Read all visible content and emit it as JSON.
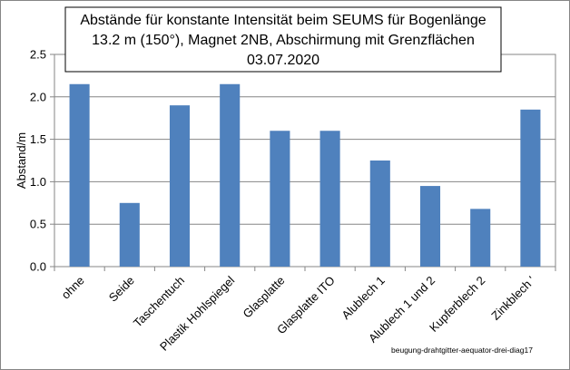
{
  "chart_data": {
    "type": "bar",
    "title_lines": [
      "Abstände für konstante Intensität beim SEUMS für Bogenlänge",
      "13.2 m (150°), Magnet 2NB, Abschirmung mit Grenzflächen",
      "03.07.2020"
    ],
    "xlabel": "",
    "ylabel": "Abstand/m",
    "ylim": [
      0,
      2.5
    ],
    "yticks": [
      "0.0",
      "0.5",
      "1.0",
      "1.5",
      "2.0",
      "2.5"
    ],
    "categories": [
      "ohne",
      "Seide",
      "Taschentuch",
      "Plastik Hohlspiegel",
      "Glasplatte",
      "Glasplatte ITO",
      "Alublech 1",
      "Alublech 1 und 2",
      "Kupferblech 2",
      "Zinkblech '"
    ],
    "values": [
      2.15,
      0.75,
      1.9,
      2.15,
      1.6,
      1.6,
      1.25,
      0.95,
      0.68,
      1.85
    ],
    "bar_color": "#4F81BD",
    "grid": true,
    "legend": "none",
    "annotation": "beugung-drahtgitter-aequator-drei-diag17"
  }
}
